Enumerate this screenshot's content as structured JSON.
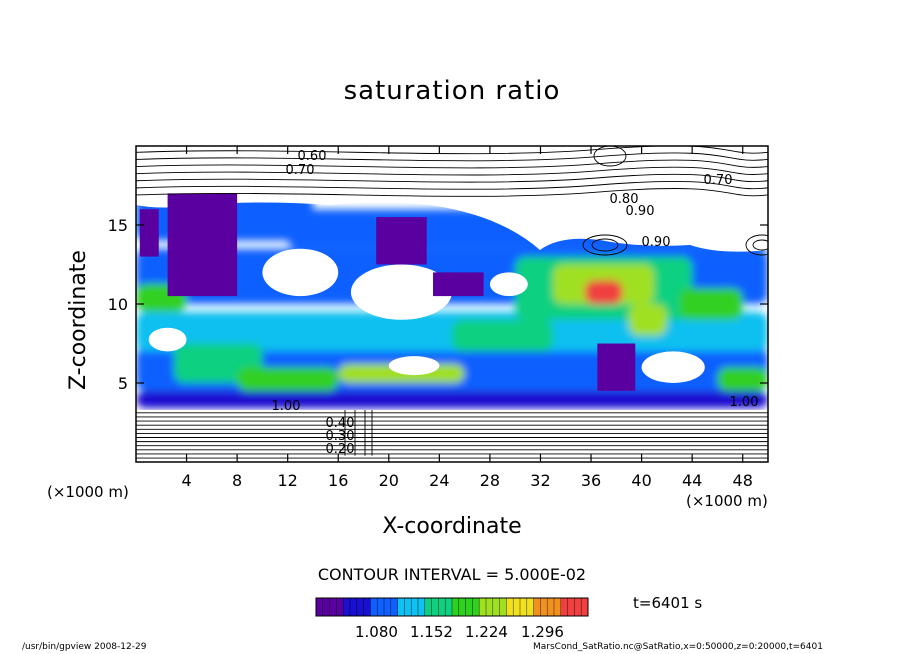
{
  "chart_data": {
    "type": "heatmap",
    "title": "saturation ratio",
    "xlabel": "X-coordinate",
    "ylabel": "Z-coordinate",
    "x_unit": "(×1000 m)",
    "xlim": [
      0,
      50
    ],
    "ylim": [
      0,
      20
    ],
    "x_ticks": [
      4,
      8,
      12,
      16,
      20,
      24,
      28,
      32,
      36,
      40,
      44,
      48
    ],
    "y_ticks": [
      5,
      10,
      15
    ],
    "contour_labels": [
      "0.60",
      "0.70",
      "0.80",
      "0.90",
      "0.90",
      "1.00",
      "1.00",
      "0.20",
      "0.30",
      "0.40",
      "0.70"
    ],
    "contour_interval": "CONTOUR INTERVAL = 5.000E-02",
    "colorbar": {
      "ticks": [
        "1.080",
        "1.152",
        "1.224",
        "1.296"
      ],
      "colors": [
        "#5b00a0",
        "#1a10d0",
        "#1060ff",
        "#10c0f0",
        "#10d080",
        "#30d020",
        "#a0e020",
        "#f0e020",
        "#f09020",
        "#f04040"
      ]
    },
    "time": "t=6401 s"
  },
  "footer": {
    "left": "/usr/bin/gpview   2008-12-29",
    "right": "MarsCond_SatRatio.nc@SatRatio,x=0:50000,z=0:20000,t=6401"
  }
}
